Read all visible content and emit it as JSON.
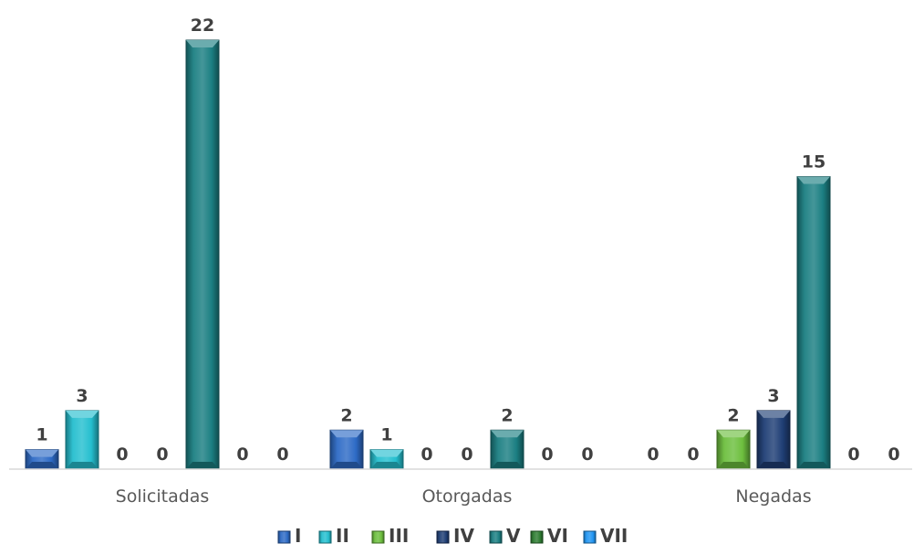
{
  "chart_data": {
    "type": "bar",
    "categories": [
      "Solicitadas",
      "Otorgadas",
      "Negadas"
    ],
    "series": [
      {
        "name": "I",
        "values": [
          1,
          2,
          0
        ],
        "color": "#2E6BC6"
      },
      {
        "name": "II",
        "values": [
          3,
          1,
          0
        ],
        "color": "#25BFCF"
      },
      {
        "name": "III",
        "values": [
          0,
          0,
          2
        ],
        "color": "#6DBF3E"
      },
      {
        "name": "IV",
        "values": [
          0,
          0,
          3
        ],
        "color": "#1F3E75"
      },
      {
        "name": "V",
        "values": [
          22,
          2,
          15
        ],
        "color": "#1B7F82"
      },
      {
        "name": "VI",
        "values": [
          0,
          0,
          0
        ],
        "color": "#2E7D32"
      },
      {
        "name": "VII",
        "values": [
          0,
          0,
          0
        ],
        "color": "#2196F3"
      }
    ],
    "ylim": [
      0,
      22
    ],
    "grid": false,
    "data_labels": true,
    "legend_position": "bottom",
    "title": "",
    "xlabel": "",
    "ylabel": ""
  }
}
